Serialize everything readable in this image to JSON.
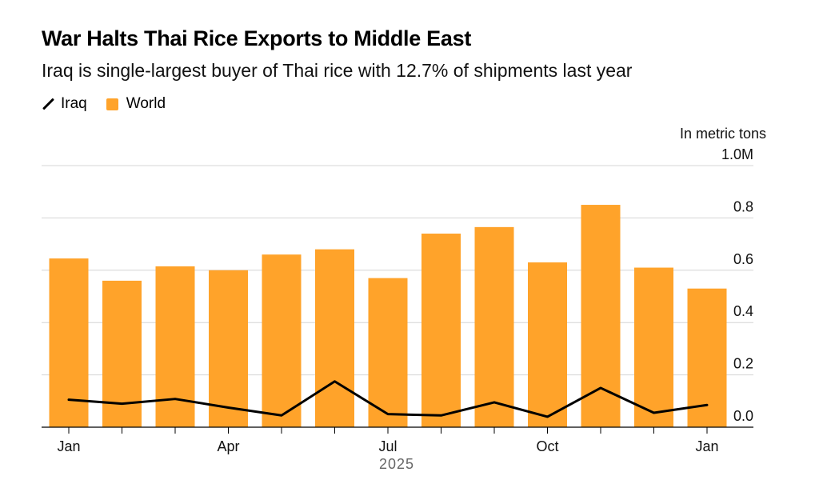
{
  "colors": {
    "world": "#FFA32A",
    "iraq": "#000000",
    "grid": "#d4d4d4",
    "axis": "#000000"
  },
  "chart_data": {
    "type": "bar",
    "title": "War Halts Thai Rice Exports to Middle East",
    "subtitle": "Iraq is single-largest buyer of Thai rice with 12.7% of shipments last year",
    "unit_label": "In metric tons",
    "legend": [
      {
        "name": "Iraq",
        "kind": "line",
        "icon": "line-icon"
      },
      {
        "name": "World",
        "kind": "bar",
        "icon": "square-icon"
      }
    ],
    "legend_position": "top-left",
    "ylim": [
      0,
      1.0
    ],
    "yticks": [
      {
        "value": 0.0,
        "label": "0.0"
      },
      {
        "value": 0.2,
        "label": "0.2"
      },
      {
        "value": 0.4,
        "label": "0.4"
      },
      {
        "value": 0.6,
        "label": "0.6"
      },
      {
        "value": 0.8,
        "label": "0.8"
      },
      {
        "value": 1.0,
        "label": "1.0M"
      }
    ],
    "x": [
      "Jan 2025",
      "Feb 2025",
      "Mar 2025",
      "Apr 2025",
      "May 2025",
      "Jun 2025",
      "Jul 2025",
      "Aug 2025",
      "Sep 2025",
      "Oct 2025",
      "Nov 2025",
      "Dec 2025",
      "Jan 2026"
    ],
    "xtick_labels": [
      {
        "index": 0,
        "label": "Jan"
      },
      {
        "index": 3,
        "label": "Apr"
      },
      {
        "index": 6,
        "label": "Jul"
      },
      {
        "index": 9,
        "label": "Oct"
      },
      {
        "index": 12,
        "label": "Jan"
      }
    ],
    "year_label": "2025",
    "series": [
      {
        "name": "World",
        "type": "bar",
        "values": [
          0.645,
          0.56,
          0.615,
          0.6,
          0.66,
          0.68,
          0.57,
          0.74,
          0.765,
          0.63,
          0.85,
          0.61,
          0.53
        ]
      },
      {
        "name": "Iraq",
        "type": "line",
        "values": [
          0.105,
          0.09,
          0.108,
          0.075,
          0.045,
          0.175,
          0.05,
          0.045,
          0.095,
          0.04,
          0.15,
          0.055,
          0.085
        ]
      }
    ]
  }
}
